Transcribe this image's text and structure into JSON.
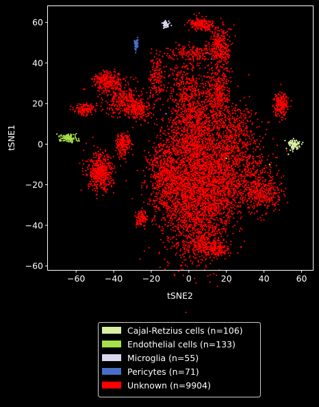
{
  "chart_data": {
    "type": "scatter",
    "title": "",
    "xlabel": "tSNE2",
    "ylabel": "tSNE1",
    "xlim": [
      -75,
      66
    ],
    "ylim": [
      -62,
      68
    ],
    "xticks": [
      -60,
      -40,
      -20,
      0,
      20,
      40,
      60
    ],
    "yticks": [
      -60,
      -40,
      -20,
      0,
      20,
      40,
      60
    ],
    "xtick_labels": [
      "−60",
      "−40",
      "−20",
      "0",
      "20",
      "40",
      "60"
    ],
    "ytick_labels": [
      "−60",
      "−40",
      "−20",
      "0",
      "20",
      "40",
      "60"
    ],
    "grid": false,
    "legend_position": "below",
    "series": [
      {
        "name": "Cajal-Retzius cells (n=106)",
        "color": "#d9f0a3",
        "count": 106,
        "clusters": [
          {
            "cx": 56,
            "cy": 0,
            "sx": 1.6,
            "sy": 1.2,
            "n": 100
          }
        ],
        "points": [
          [
            53,
            -5
          ],
          [
            54,
            -3
          ]
        ]
      },
      {
        "name": "Endothelial cells (n=133)",
        "color": "#a6e04a",
        "count": 133,
        "clusters": [
          {
            "cx": -64,
            "cy": 3,
            "sx": 2.2,
            "sy": 1.0,
            "n": 120
          }
        ],
        "points": [
          [
            -68,
            4
          ],
          [
            -69,
            4
          ],
          [
            20,
            -7
          ],
          [
            43,
            -10
          ]
        ]
      },
      {
        "name": "Microglia (n=55)",
        "color": "#dcd6ee",
        "count": 55,
        "clusters": [
          {
            "cx": -12,
            "cy": 59,
            "sx": 0.9,
            "sy": 0.8,
            "n": 55
          }
        ],
        "points": []
      },
      {
        "name": "Pericytes (n=71)",
        "color": "#4a6fc9",
        "count": 71,
        "clusters": [
          {
            "cx": -28,
            "cy": 49,
            "sx": 0.5,
            "sy": 1.4,
            "n": 60
          }
        ],
        "points": [
          [
            -12,
            15
          ],
          [
            10,
            45
          ],
          [
            12,
            42
          ]
        ]
      },
      {
        "name": "Unknown (n=9904)",
        "color": "#ff0000",
        "count": 9904,
        "clusters": [
          {
            "cx": 3,
            "cy": -25,
            "sx": 9,
            "sy": 15,
            "n": 2200
          },
          {
            "cx": 3,
            "cy": 8,
            "sx": 8,
            "sy": 12,
            "n": 1300
          },
          {
            "cx": -12,
            "cy": -15,
            "sx": 5,
            "sy": 8,
            "n": 550
          },
          {
            "cx": 18,
            "cy": -18,
            "sx": 5,
            "sy": 12,
            "n": 650
          },
          {
            "cx": 33,
            "cy": -18,
            "sx": 7,
            "sy": 8,
            "n": 450
          },
          {
            "cx": 25,
            "cy": 5,
            "sx": 6,
            "sy": 8,
            "n": 420
          },
          {
            "cx": 16,
            "cy": 25,
            "sx": 3,
            "sy": 7,
            "n": 300
          },
          {
            "cx": 17,
            "cy": 48,
            "sx": 3,
            "sy": 5,
            "n": 280
          },
          {
            "cx": 7,
            "cy": 59,
            "sx": 3.5,
            "sy": 1.5,
            "n": 200
          },
          {
            "cx": 2,
            "cy": 45,
            "sx": 6,
            "sy": 2,
            "n": 170
          },
          {
            "cx": -2,
            "cy": 28,
            "sx": 4,
            "sy": 7,
            "n": 180
          },
          {
            "cx": -17,
            "cy": 33,
            "sx": 2,
            "sy": 6,
            "n": 160
          },
          {
            "cx": -27,
            "cy": 18,
            "sx": 3,
            "sy": 3,
            "n": 220
          },
          {
            "cx": -35,
            "cy": 22,
            "sx": 5,
            "sy": 4,
            "n": 280
          },
          {
            "cx": -43,
            "cy": 31,
            "sx": 4,
            "sy": 2.5,
            "n": 280
          },
          {
            "cx": -55,
            "cy": 17,
            "sx": 3,
            "sy": 1.5,
            "n": 130
          },
          {
            "cx": -35,
            "cy": 0,
            "sx": 2,
            "sy": 3,
            "n": 200
          },
          {
            "cx": -47,
            "cy": -14,
            "sx": 3.5,
            "sy": 4.5,
            "n": 500
          },
          {
            "cx": -25,
            "cy": -37,
            "sx": 1.5,
            "sy": 2,
            "n": 110
          },
          {
            "cx": 49,
            "cy": 20,
            "sx": 2,
            "sy": 3,
            "n": 210
          },
          {
            "cx": 15,
            "cy": -52,
            "sx": 3,
            "sy": 2,
            "n": 120
          },
          {
            "cx": 8,
            "cy": -50,
            "sx": 5,
            "sy": 3,
            "n": 200
          },
          {
            "cx": 40,
            "cy": -25,
            "sx": 5,
            "sy": 4,
            "n": 220
          }
        ],
        "points": []
      }
    ]
  }
}
